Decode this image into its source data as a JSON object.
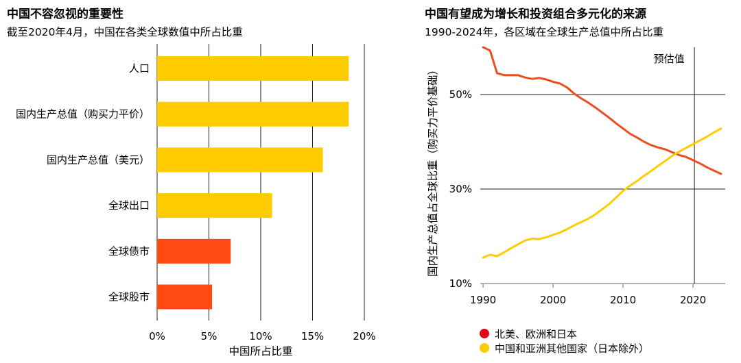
{
  "chart_data": [
    {
      "type": "bar",
      "horizontal": true,
      "title": "中国不容忽视的重要性",
      "subtitle": "截至2020年4月，中国在各类全球数值中所占比重",
      "categories": [
        "人口",
        "国内生产总值（购买力平价）",
        "国内生产总值（美元）",
        "全球出口",
        "全球债市",
        "全球股市"
      ],
      "values": [
        18.5,
        18.5,
        16.0,
        11.1,
        7.1,
        5.3
      ],
      "bar_colors": [
        "#FFCC00",
        "#FFCC00",
        "#FFCC00",
        "#FFCC00",
        "#FF4A14",
        "#FF4A14"
      ],
      "xlabel": "中国所占比重",
      "ylabel": "",
      "xlim": [
        0,
        20
      ],
      "xticks": [
        0,
        5,
        10,
        15,
        20
      ],
      "xtick_labels": [
        "0%",
        "5%",
        "10%",
        "15%",
        "20%"
      ],
      "grid": true
    },
    {
      "type": "line",
      "title": "中国有望成为增长和投资组合多元化的来源",
      "subtitle": "1990-2024年，各区域在全球生产总值中所占比重",
      "x": [
        1990,
        1991,
        1992,
        1993,
        1994,
        1995,
        1996,
        1997,
        1998,
        1999,
        2000,
        2001,
        2002,
        2003,
        2004,
        2005,
        2006,
        2007,
        2008,
        2009,
        2010,
        2011,
        2012,
        2013,
        2014,
        2015,
        2016,
        2017,
        2018,
        2019,
        2020,
        2021,
        2022,
        2023,
        2024
      ],
      "series": [
        {
          "name": "北美、欧洲和日本",
          "color": "#EE4B1E",
          "legend_color": "#E30613",
          "values": [
            60.0,
            59.3,
            54.5,
            54.1,
            54.1,
            54.1,
            53.6,
            53.3,
            53.5,
            53.2,
            52.7,
            52.3,
            51.5,
            50.2,
            49.2,
            48.3,
            47.3,
            46.2,
            45.1,
            43.9,
            42.8,
            41.7,
            40.9,
            40.0,
            39.3,
            38.8,
            38.4,
            37.8,
            37.2,
            36.8,
            36.1,
            35.4,
            34.6,
            33.9,
            33.2
          ]
        },
        {
          "name": "中国和亚洲其他国家（日本除外）",
          "color": "#FFCC00",
          "legend_color": "#FFCC00",
          "values": [
            15.5,
            16.1,
            15.8,
            16.6,
            17.5,
            18.3,
            19.1,
            19.5,
            19.4,
            19.8,
            20.3,
            20.8,
            21.5,
            22.3,
            23.0,
            23.7,
            24.6,
            25.7,
            26.8,
            28.2,
            29.6,
            30.7,
            31.7,
            32.8,
            33.8,
            34.9,
            35.9,
            37.0,
            37.9,
            38.7,
            39.5,
            40.3,
            41.1,
            42.0,
            42.8
          ]
        }
      ],
      "xlabel": "",
      "ylabel": "国内生产总值占全球比重（购买力平价基础）",
      "xlim": [
        1989.6,
        2024.6
      ],
      "ylim": [
        10,
        60
      ],
      "xticks": [
        1990,
        2000,
        2010,
        2020
      ],
      "xtick_labels": [
        "1990",
        "2000",
        "2010",
        "2020"
      ],
      "yticks": [
        10,
        30,
        50
      ],
      "ytick_labels": [
        "10%",
        "30%",
        "50%"
      ],
      "annotation": {
        "text": "预估值",
        "x": 2020.2
      },
      "grid": true,
      "legend": "bottom-left"
    }
  ]
}
